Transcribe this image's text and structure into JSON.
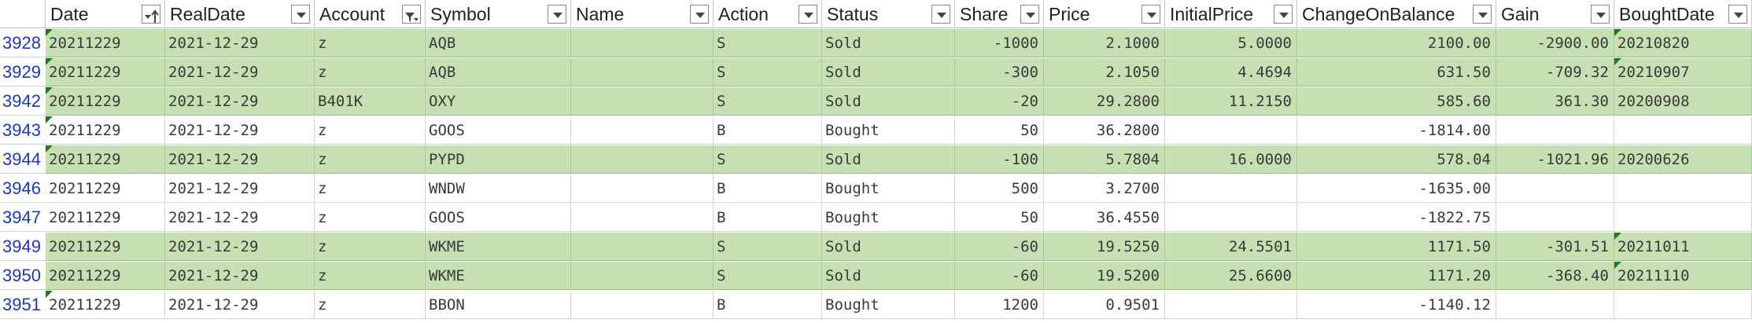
{
  "columns": [
    {
      "key": "date",
      "label": "Date",
      "filter": "sort-filter"
    },
    {
      "key": "realdate",
      "label": "RealDate",
      "filter": "dropdown"
    },
    {
      "key": "account",
      "label": "Account",
      "filter": "filtered"
    },
    {
      "key": "symbol",
      "label": "Symbol",
      "filter": "dropdown"
    },
    {
      "key": "name",
      "label": "Name",
      "filter": "dropdown"
    },
    {
      "key": "action",
      "label": "Action",
      "filter": "dropdown"
    },
    {
      "key": "status",
      "label": "Status",
      "filter": "dropdown"
    },
    {
      "key": "share",
      "label": "Share",
      "filter": "dropdown"
    },
    {
      "key": "price",
      "label": "Price",
      "filter": "dropdown"
    },
    {
      "key": "initialprice",
      "label": "InitialPrice",
      "filter": "dropdown"
    },
    {
      "key": "changeonbalance",
      "label": "ChangeOnBalance",
      "filter": "dropdown"
    },
    {
      "key": "gain",
      "label": "Gain",
      "filter": "dropdown"
    },
    {
      "key": "boughtdate",
      "label": "BoughtDate",
      "filter": "dropdown"
    }
  ],
  "colors": {
    "sold_fill": "#c6e0b4",
    "row_number": "#1b36c9",
    "comment_flag": "#1e7a1e"
  },
  "rows": [
    {
      "num": "3928",
      "highlight": true,
      "date": "20211229",
      "realdate": "2021-12-29",
      "account": "z",
      "symbol": "AQB",
      "name": "",
      "action": "S",
      "status": "Sold",
      "share": "-1000",
      "price": "2.1000",
      "initialprice": "5.0000",
      "changeonbalance": "2100.00",
      "gain": "-2900.00",
      "boughtdate": "20210820",
      "flags": [
        "date",
        "boughtdate"
      ]
    },
    {
      "num": "3929",
      "highlight": true,
      "date": "20211229",
      "realdate": "2021-12-29",
      "account": "z",
      "symbol": "AQB",
      "name": "",
      "action": "S",
      "status": "Sold",
      "share": "-300",
      "price": "2.1050",
      "initialprice": "4.4694",
      "changeonbalance": "631.50",
      "gain": "-709.32",
      "boughtdate": "20210907",
      "flags": [
        "date",
        "boughtdate"
      ]
    },
    {
      "num": "3942",
      "highlight": true,
      "date": "20211229",
      "realdate": "2021-12-29",
      "account": "B401K",
      "symbol": "OXY",
      "name": "",
      "action": "S",
      "status": "Sold",
      "share": "-20",
      "price": "29.2800",
      "initialprice": "11.2150",
      "changeonbalance": "585.60",
      "gain": "361.30",
      "boughtdate": "20200908",
      "flags": [
        "date"
      ]
    },
    {
      "num": "3943",
      "highlight": false,
      "date": "20211229",
      "realdate": "2021-12-29",
      "account": "z",
      "symbol": "GOOS",
      "name": "",
      "action": "B",
      "status": "Bought",
      "share": "50",
      "price": "36.2800",
      "initialprice": "",
      "changeonbalance": "-1814.00",
      "gain": "",
      "boughtdate": "",
      "flags": [
        "date"
      ]
    },
    {
      "num": "3944",
      "highlight": true,
      "date": "20211229",
      "realdate": "2021-12-29",
      "account": "z",
      "symbol": "PYPD",
      "name": "",
      "action": "S",
      "status": "Sold",
      "share": "-100",
      "price": "5.7804",
      "initialprice": "16.0000",
      "changeonbalance": "578.04",
      "gain": "-1021.96",
      "boughtdate": "20200626",
      "flags": [
        "date"
      ]
    },
    {
      "num": "3946",
      "highlight": false,
      "date": "20211229",
      "realdate": "2021-12-29",
      "account": "z",
      "symbol": "WNDW",
      "name": "",
      "action": "B",
      "status": "Bought",
      "share": "500",
      "price": "3.2700",
      "initialprice": "",
      "changeonbalance": "-1635.00",
      "gain": "",
      "boughtdate": "",
      "flags": []
    },
    {
      "num": "3947",
      "highlight": false,
      "date": "20211229",
      "realdate": "2021-12-29",
      "account": "z",
      "symbol": "GOOS",
      "name": "",
      "action": "B",
      "status": "Bought",
      "share": "50",
      "price": "36.4550",
      "initialprice": "",
      "changeonbalance": "-1822.75",
      "gain": "",
      "boughtdate": "",
      "flags": []
    },
    {
      "num": "3949",
      "highlight": true,
      "date": "20211229",
      "realdate": "2021-12-29",
      "account": "z",
      "symbol": "WKME",
      "name": "",
      "action": "S",
      "status": "Sold",
      "share": "-60",
      "price": "19.5250",
      "initialprice": "24.5501",
      "changeonbalance": "1171.50",
      "gain": "-301.51",
      "boughtdate": "20211011",
      "flags": [
        "boughtdate"
      ]
    },
    {
      "num": "3950",
      "highlight": true,
      "date": "20211229",
      "realdate": "2021-12-29",
      "account": "z",
      "symbol": "WKME",
      "name": "",
      "action": "S",
      "status": "Sold",
      "share": "-60",
      "price": "19.5200",
      "initialprice": "25.6600",
      "changeonbalance": "1171.20",
      "gain": "-368.40",
      "boughtdate": "20211110",
      "flags": [
        "boughtdate"
      ]
    },
    {
      "num": "3951",
      "highlight": false,
      "date": "20211229",
      "realdate": "2021-12-29",
      "account": "z",
      "symbol": "BBON",
      "name": "",
      "action": "B",
      "status": "Bought",
      "share": "1200",
      "price": "0.9501",
      "initialprice": "",
      "changeonbalance": "-1140.12",
      "gain": "",
      "boughtdate": "",
      "flags": [
        "date"
      ]
    }
  ]
}
